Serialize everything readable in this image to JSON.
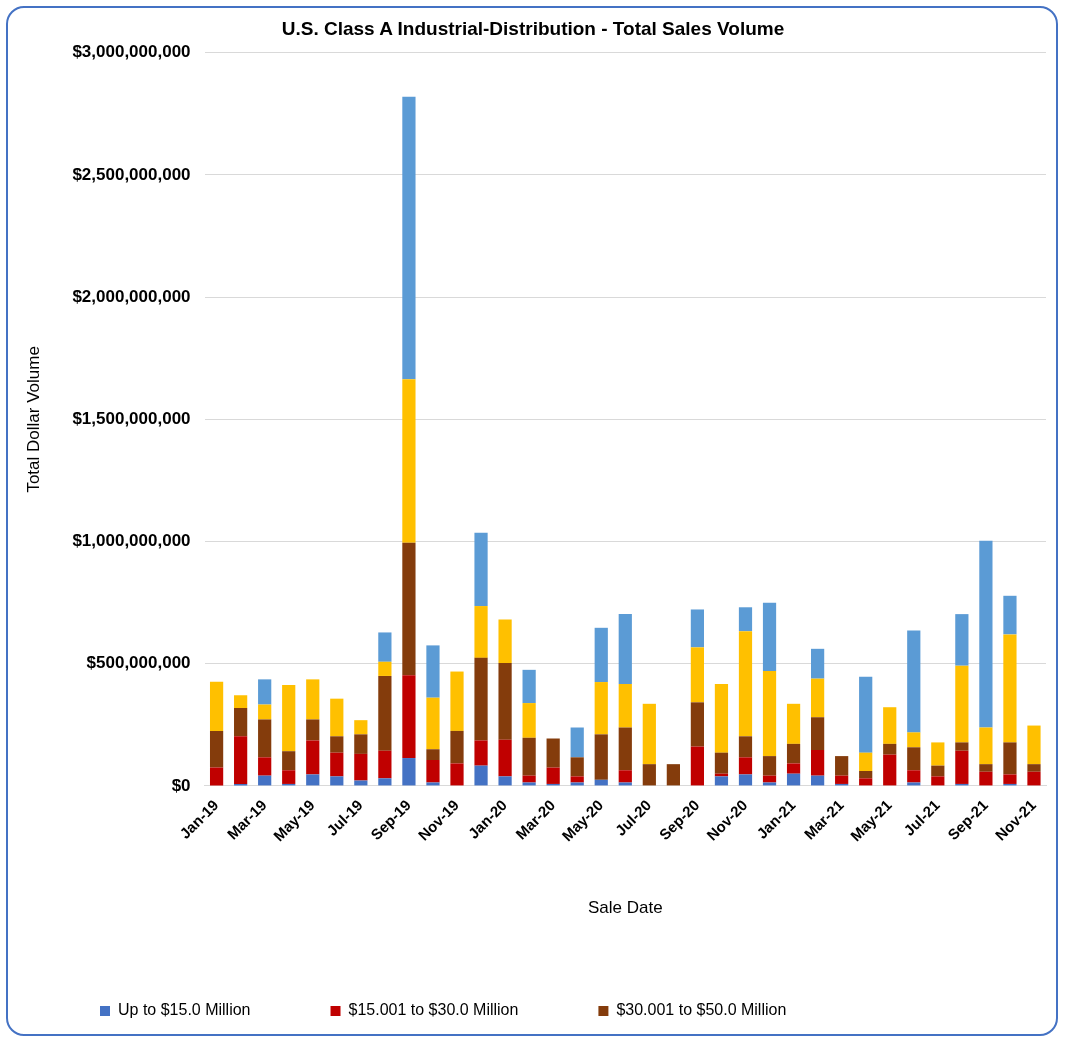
{
  "chart_data": {
    "type": "bar",
    "title": "U.S. Class A Industrial-Distribution - Total Sales Volume",
    "xlabel": "Sale Date",
    "ylabel": "Total Dollar Volume",
    "stacked": true,
    "grid": "y",
    "legend": "bottom",
    "categories": [
      "Jan-19",
      null,
      "Mar-19",
      null,
      "May-19",
      null,
      "Jul-19",
      null,
      "Sep-19",
      null,
      "Nov-19",
      null,
      "Jan-20",
      null,
      "Mar-20",
      null,
      "May-20",
      null,
      "Jul-20",
      null,
      "Sep-20",
      null,
      "Nov-20",
      null,
      "Jan-21",
      null,
      "Mar-21",
      null,
      "May-21",
      null,
      "Jul-21",
      null,
      "Sep-21",
      null,
      "Nov-21"
    ],
    "ylim": [
      0,
      3000000000
    ],
    "yticks": [
      {
        "value": 0,
        "label": "$0"
      },
      {
        "value": 500000000,
        "label": "$500,000,000"
      },
      {
        "value": 1000000000,
        "label": "$1,000,000,000"
      },
      {
        "value": 1500000000,
        "label": "$1,500,000,000"
      },
      {
        "value": 2000000000,
        "label": "$2,000,000,000"
      },
      {
        "value": 2500000000,
        "label": "$2,500,000,000"
      },
      {
        "value": 3000000000,
        "label": "$3,000,000,000"
      }
    ],
    "series": [
      {
        "name": "Up to $15.0 Million",
        "color": "#4472c4",
        "values": [
          0,
          8000000,
          42000000,
          8000000,
          47000000,
          39000000,
          22000000,
          31000000,
          114000000,
          14000000,
          0,
          83000000,
          39000000,
          14000000,
          8000000,
          14000000,
          25000000,
          14000000,
          0,
          0,
          0,
          39000000,
          47000000,
          14000000,
          50000000,
          42000000,
          8000000,
          0,
          0,
          14000000,
          0,
          8000000,
          0,
          8000000,
          0
        ]
      },
      {
        "name": "$15.001 to $30.0 Million",
        "color": "#c00000",
        "values": [
          75000000,
          195000000,
          75000000,
          56000000,
          139000000,
          97000000,
          109000000,
          113000000,
          339000000,
          92000000,
          92000000,
          103000000,
          150000000,
          28000000,
          67000000,
          25000000,
          0,
          50000000,
          0,
          0,
          161000000,
          11000000,
          70000000,
          28000000,
          42000000,
          105000000,
          34000000,
          31000000,
          128000000,
          50000000,
          39000000,
          136000000,
          58000000,
          39000000,
          58000000
        ]
      },
      {
        "name": "$30.001 to $50.0 Million",
        "color": "#843c0c",
        "values": [
          150000000,
          116000000,
          155000000,
          78000000,
          86000000,
          67000000,
          80000000,
          306000000,
          542000000,
          44000000,
          133000000,
          338000000,
          314000000,
          155000000,
          119000000,
          78000000,
          186000000,
          175000000,
          89000000,
          89000000,
          181000000,
          86000000,
          86000000,
          80000000,
          80000000,
          134000000,
          80000000,
          30000000,
          44000000,
          94000000,
          44000000,
          34000000,
          31000000,
          131000000,
          31000000
        ]
      },
      {
        "color": "#ffc000",
        "values": [
          201000000,
          52000000,
          61000000,
          271000000,
          164000000,
          154000000,
          58000000,
          58000000,
          669000000,
          211000000,
          243000000,
          212000000,
          178000000,
          142000000,
          0,
          0,
          214000000,
          178000000,
          247000000,
          0,
          225000000,
          281000000,
          430000000,
          348000000,
          164000000,
          158000000,
          0,
          75000000,
          150000000,
          61000000,
          95000000,
          314000000,
          150000000,
          442000000,
          158000000
        ]
      },
      {
        "color": "#5b9bd5",
        "values": [
          0,
          0,
          103000000,
          0,
          0,
          0,
          0,
          120000000,
          1156000000,
          214000000,
          0,
          300000000,
          0,
          136000000,
          0,
          122000000,
          222000000,
          286000000,
          0,
          0,
          155000000,
          0,
          98000000,
          280000000,
          0,
          122000000,
          0,
          311000000,
          0,
          417000000,
          0,
          211000000,
          764000000,
          158000000,
          0
        ]
      }
    ]
  }
}
